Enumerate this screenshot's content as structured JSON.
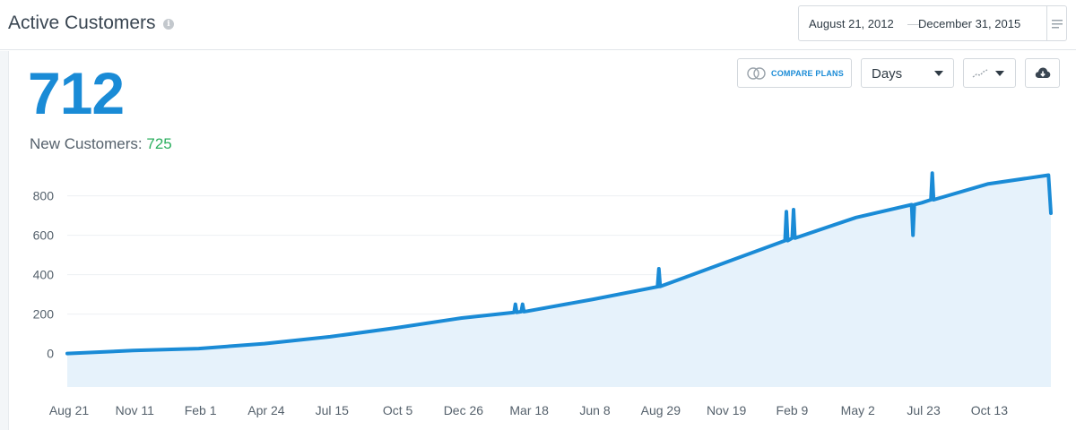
{
  "header": {
    "title": "Active Customers",
    "info_icon": "info-icon",
    "date_start": "August 21, 2012",
    "date_separator": "—",
    "date_end": "December 31, 2015",
    "menu_icon": "list-icon"
  },
  "summary": {
    "big_number": "712",
    "new_customers_label": "New Customers:",
    "new_customers_value": "725"
  },
  "toolbar": {
    "compare_label": "COMPARE PLANS",
    "compare_icon": "compare-circles-icon",
    "interval_value": "Days",
    "chart_type_icon": "line-chart-icon",
    "download_icon": "cloud-download-icon"
  },
  "colors": {
    "accent": "#1a8bd6",
    "positive": "#2bae5e",
    "area_fill": "#e6f2fb",
    "grid": "#edf0f3"
  },
  "chart_data": {
    "type": "area",
    "title": "",
    "xlabel": "",
    "ylabel": "",
    "ylim": [
      -170,
      930
    ],
    "yticks": [
      0,
      200,
      400,
      600,
      800
    ],
    "xticks": [
      "Aug 21",
      "Nov 11",
      "Feb 1",
      "Apr 24",
      "Jul 15",
      "Oct 5",
      "Dec 26",
      "Mar 18",
      "Jun 8",
      "Aug 29",
      "Nov 19",
      "Feb 9",
      "May 2",
      "Jul 23",
      "Oct 13"
    ],
    "grid": true,
    "series": [
      {
        "x": [
          "2012-08-21",
          "2012-11-11",
          "2013-02-01",
          "2013-04-24",
          "2013-07-15",
          "2013-10-05",
          "2013-12-26",
          "2014-03-18",
          "2014-06-08",
          "2014-08-29",
          "2014-11-19",
          "2015-02-09",
          "2015-05-02",
          "2015-07-23",
          "2015-10-13",
          "2015-12-28",
          "2015-12-31"
        ],
        "values": [
          0,
          15,
          25,
          50,
          85,
          130,
          180,
          215,
          275,
          340,
          460,
          580,
          690,
          765,
          860,
          905,
          712
        ]
      }
    ],
    "spikes": [
      {
        "x": "2014-03-03",
        "value": 250
      },
      {
        "x": "2014-03-12",
        "value": 250
      },
      {
        "x": "2014-08-29",
        "value": 430
      },
      {
        "x": "2015-02-04",
        "value": 720
      },
      {
        "x": "2015-02-13",
        "value": 730
      },
      {
        "x": "2015-07-12",
        "value": 600
      },
      {
        "x": "2015-08-05",
        "value": 915
      }
    ]
  }
}
